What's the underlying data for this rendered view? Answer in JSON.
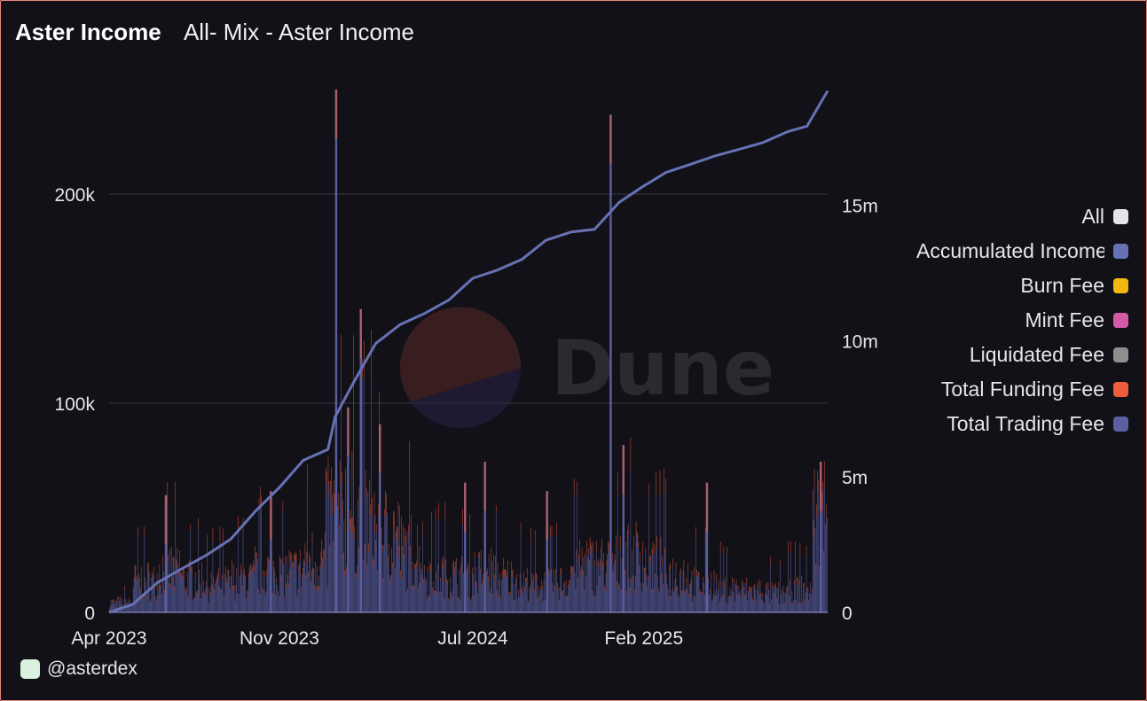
{
  "header": {
    "title": "Aster Income",
    "subtitle": "All- Mix - Aster Income"
  },
  "footer": {
    "author": "@asterdex"
  },
  "watermark": {
    "text": "Dune"
  },
  "chart_data": {
    "type": "bar",
    "x_range": [
      "2023-04-01",
      "2025-09-20"
    ],
    "x_ticks": [
      "Apr 2023",
      "Nov 2023",
      "Jul 2024",
      "Feb 2025"
    ],
    "y_left": {
      "ticks": [
        "0",
        "100k",
        "200k"
      ],
      "range": [
        0,
        250000
      ]
    },
    "y_right": {
      "ticks": [
        "0",
        "5m",
        "10m",
        "15m"
      ],
      "range": [
        0,
        19250000
      ]
    },
    "grid": true,
    "legend_position": "right",
    "legend": [
      {
        "label": "All",
        "color": "#e5e5e8"
      },
      {
        "label": "Accumulated Income",
        "color": "#6771b4"
      },
      {
        "label": "Burn Fee",
        "color": "#f2b80f"
      },
      {
        "label": "Mint Fee",
        "color": "#d35aa6"
      },
      {
        "label": "Liquidated Fee",
        "color": "#8e8e8e"
      },
      {
        "label": "Total Funding Fee",
        "color": "#ef5c3e"
      },
      {
        "label": "Total Trading Fee",
        "color": "#5b5fa2"
      }
    ],
    "series": [
      {
        "name": "Accumulated Income",
        "type": "line",
        "axis": "right",
        "color": "#6771b4",
        "points": [
          [
            "2023-04-01",
            0
          ],
          [
            "2023-05-01",
            300000
          ],
          [
            "2023-06-01",
            1100000
          ],
          [
            "2023-07-01",
            1600000
          ],
          [
            "2023-08-01",
            2100000
          ],
          [
            "2023-09-01",
            2700000
          ],
          [
            "2023-10-01",
            3700000
          ],
          [
            "2023-11-01",
            4600000
          ],
          [
            "2023-12-01",
            5600000
          ],
          [
            "2024-01-01",
            6000000
          ],
          [
            "2024-01-10",
            7200000
          ],
          [
            "2024-02-01",
            8400000
          ],
          [
            "2024-03-01",
            9900000
          ],
          [
            "2024-04-01",
            10600000
          ],
          [
            "2024-05-01",
            11000000
          ],
          [
            "2024-06-01",
            11500000
          ],
          [
            "2024-07-01",
            12300000
          ],
          [
            "2024-08-01",
            12600000
          ],
          [
            "2024-09-01",
            13000000
          ],
          [
            "2024-10-01",
            13700000
          ],
          [
            "2024-11-01",
            14000000
          ],
          [
            "2024-12-01",
            14100000
          ],
          [
            "2025-01-01",
            15100000
          ],
          [
            "2025-02-01",
            15700000
          ],
          [
            "2025-03-01",
            16200000
          ],
          [
            "2025-04-01",
            16500000
          ],
          [
            "2025-05-01",
            16800000
          ],
          [
            "2025-06-01",
            17050000
          ],
          [
            "2025-07-01",
            17300000
          ],
          [
            "2025-08-01",
            17700000
          ],
          [
            "2025-08-25",
            17900000
          ],
          [
            "2025-09-20",
            19200000
          ]
        ]
      },
      {
        "name": "Total Trading Fee",
        "type": "bar",
        "axis": "left",
        "color": "#5b5fa2",
        "monthly_avg": [
          [
            "2023-04",
            4000
          ],
          [
            "2023-05",
            13000
          ],
          [
            "2023-06",
            18000
          ],
          [
            "2023-07",
            14000
          ],
          [
            "2023-08",
            12000
          ],
          [
            "2023-09",
            14000
          ],
          [
            "2023-10",
            18000
          ],
          [
            "2023-11",
            17000
          ],
          [
            "2023-12",
            22000
          ],
          [
            "2024-01",
            42000
          ],
          [
            "2024-02",
            40000
          ],
          [
            "2024-03",
            32000
          ],
          [
            "2024-04",
            25000
          ],
          [
            "2024-05",
            16000
          ],
          [
            "2024-06",
            15000
          ],
          [
            "2024-07",
            17000
          ],
          [
            "2024-08",
            14000
          ],
          [
            "2024-09",
            12000
          ],
          [
            "2024-10",
            13000
          ],
          [
            "2024-11",
            20000
          ],
          [
            "2024-12",
            20000
          ],
          [
            "2025-01",
            24000
          ],
          [
            "2025-02",
            20000
          ],
          [
            "2025-03",
            16000
          ],
          [
            "2025-04",
            12000
          ],
          [
            "2025-05",
            10000
          ],
          [
            "2025-06",
            9000
          ],
          [
            "2025-07",
            8000
          ],
          [
            "2025-08",
            10000
          ],
          [
            "2025-09",
            40000
          ]
        ],
        "spikes": [
          [
            "2023-06-10",
            56000
          ],
          [
            "2023-10-20",
            58000
          ],
          [
            "2024-01-10",
            250000
          ],
          [
            "2024-01-25",
            98000
          ],
          [
            "2024-02-10",
            145000
          ],
          [
            "2024-03-05",
            90000
          ],
          [
            "2024-06-20",
            62000
          ],
          [
            "2024-07-15",
            72000
          ],
          [
            "2024-10-01",
            58000
          ],
          [
            "2024-12-20",
            238000
          ],
          [
            "2025-01-05",
            80000
          ],
          [
            "2025-04-20",
            62000
          ],
          [
            "2025-09-10",
            72000
          ]
        ]
      },
      {
        "name": "Total Funding Fee",
        "type": "bar",
        "axis": "left",
        "color": "#ef5c3e",
        "share_of_daily": 0.15
      }
    ]
  }
}
